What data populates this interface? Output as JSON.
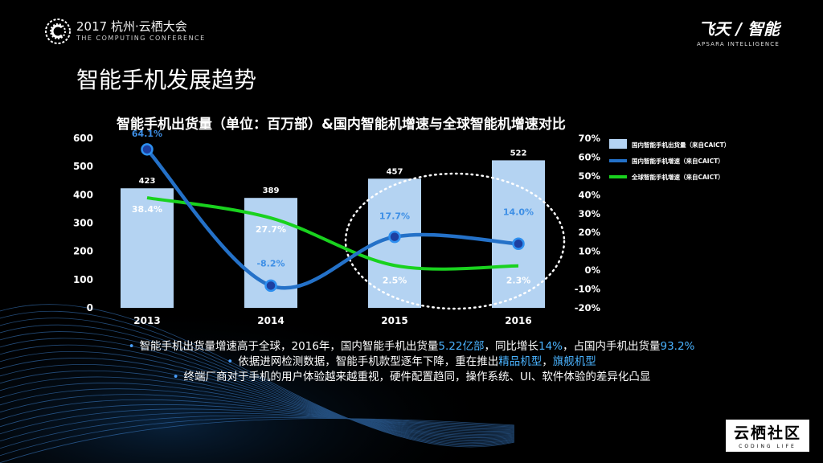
{
  "header": {
    "conference_title": "2017 杭州·云栖大会",
    "conference_subtitle": "THE COMPUTING CONFERENCE",
    "brand_title": "飞天 / 智能",
    "brand_subtitle": "APSARA INTELLIGENCE"
  },
  "page_title": "智能手机发展趋势",
  "chart_data": {
    "type": "bar",
    "title": "智能手机出货量（单位：百万部）&国内智能机增速与全球智能机增速对比",
    "categories": [
      "2013",
      "2014",
      "2015",
      "2016"
    ],
    "yleft": {
      "ylim": [
        0,
        600
      ],
      "ticks": [
        "600",
        "500",
        "400",
        "300",
        "200",
        "100",
        "0"
      ]
    },
    "yright": {
      "ylim": [
        -20,
        70
      ],
      "ticks": [
        "70%",
        "60%",
        "50%",
        "40%",
        "30%",
        "20%",
        "10%",
        "0%",
        "-10%",
        "-20%"
      ]
    },
    "legend_position": "top-right",
    "series": [
      {
        "name": "国内智能手机出货量（来自CAICT）",
        "kind": "bar",
        "axis": "left",
        "color": "#b4d3f2",
        "values": [
          423,
          389,
          457,
          522
        ],
        "labels": [
          "423",
          "389",
          "457",
          "522"
        ]
      },
      {
        "name": "国内智能手机增速（来自CAICT）",
        "kind": "line",
        "axis": "right",
        "color": "#2471c8",
        "values": [
          64.1,
          -8.2,
          17.7,
          14.0
        ],
        "labels": [
          "64.1%",
          "-8.2%",
          "17.7%",
          "14.0%"
        ]
      },
      {
        "name": "全球智能手机增速（来自CAICT）",
        "kind": "line",
        "axis": "right",
        "color": "#19d21e",
        "values": [
          38.4,
          27.7,
          2.5,
          2.3
        ],
        "labels": [
          "38.4%",
          "27.7%",
          "2.5%",
          "2.3%"
        ]
      }
    ]
  },
  "bullets": {
    "line1_pre": "智能手机出货量增速高于全球，2016年，国内智能手机出货量",
    "line1_hl1": "5.22亿部",
    "line1_mid": "，同比增长",
    "line1_hl2": "14%",
    "line1_mid2": "，占国内手机出货量",
    "line1_hl3": "93.2%",
    "line2_pre": "依据进网检测数据，智能手机款型逐年下降，重在推出",
    "line2_hl1": "精品机型",
    "line2_mid": "，",
    "line2_hl2": "旗舰机型",
    "line3": "终端厂商对于手机的用户体验越来越重视，硬件配置趋同，操作系统、UI、软件体验的差异化凸显"
  },
  "footer": {
    "logo_text": "云栖社区",
    "logo_sub": "CODING LIFE"
  }
}
